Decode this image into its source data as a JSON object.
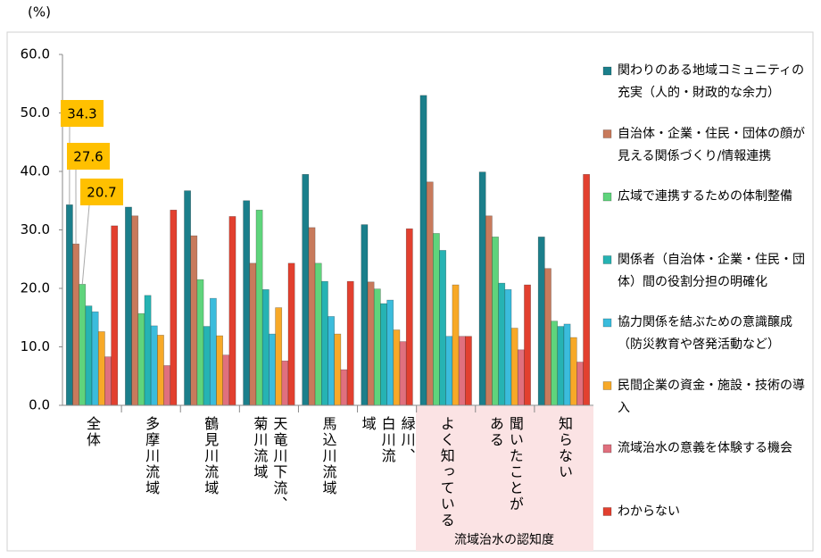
{
  "chart_data": {
    "type": "bar",
    "y_label": "(%)",
    "categories": [
      "全体",
      "多摩川流域",
      "鶴見川流域",
      "天竜川下流、菊川流域",
      "馬込川流域",
      "緑川、白川流域",
      "よく知っている",
      "聞いたことがある",
      "知らない"
    ],
    "group_label": "流域治水の認知度",
    "series": [
      {
        "name": "関わりのある地域コミュニティの充実（人的・財政的な余力）",
        "color": "#1b7f8b",
        "values": [
          34.3,
          33.9,
          36.7,
          35.0,
          39.5,
          30.9,
          53.0,
          39.9,
          28.8
        ]
      },
      {
        "name": "自治体・企業・住民・団体の顔が見える関係づくり/情報連携",
        "color": "#c87a5c",
        "values": [
          27.6,
          32.4,
          29.0,
          24.3,
          30.4,
          21.1,
          38.2,
          32.4,
          23.4
        ]
      },
      {
        "name": "広域で連携するための体制整備",
        "color": "#5fd47c",
        "values": [
          20.7,
          15.7,
          21.5,
          33.4,
          24.3,
          19.9,
          29.4,
          28.8,
          14.4
        ]
      },
      {
        "name": "関係者（自治体・企業・住民・団体）間の役割分担の明確化",
        "color": "#26b3b3",
        "values": [
          17.0,
          18.8,
          13.5,
          19.8,
          21.2,
          17.4,
          26.5,
          20.9,
          13.5
        ]
      },
      {
        "name": "協力関係を結ぶための意識醸成（防災教育や啓発活動など）",
        "color": "#3bbcdc",
        "values": [
          16.0,
          13.6,
          18.3,
          12.2,
          15.2,
          18.0,
          11.8,
          19.8,
          13.9
        ]
      },
      {
        "name": "民間企業の資金・施設・技術の導入",
        "color": "#f7a928",
        "values": [
          12.6,
          12.0,
          11.9,
          16.7,
          12.2,
          12.9,
          20.6,
          13.2,
          11.6
        ]
      },
      {
        "name": "流域治水の意義を体験する機会",
        "color": "#e0707e",
        "values": [
          8.3,
          6.8,
          8.6,
          7.6,
          6.1,
          10.9,
          11.8,
          9.5,
          7.4
        ]
      },
      {
        "name": "わからない",
        "color": "#e2402f",
        "values": [
          30.7,
          33.4,
          32.3,
          24.3,
          21.2,
          30.2,
          11.8,
          20.6,
          39.5
        ]
      }
    ],
    "ylim": [
      0,
      60
    ],
    "yticks": [
      {
        "value": 0,
        "label": "0.0"
      },
      {
        "value": 10,
        "label": "10.0"
      },
      {
        "value": 20,
        "label": "20.0"
      },
      {
        "value": 30,
        "label": "30.0"
      },
      {
        "value": 40,
        "label": "40.0"
      },
      {
        "value": 50,
        "label": "50.0"
      },
      {
        "value": 60,
        "label": "60.0"
      }
    ],
    "legend": "right"
  }
}
